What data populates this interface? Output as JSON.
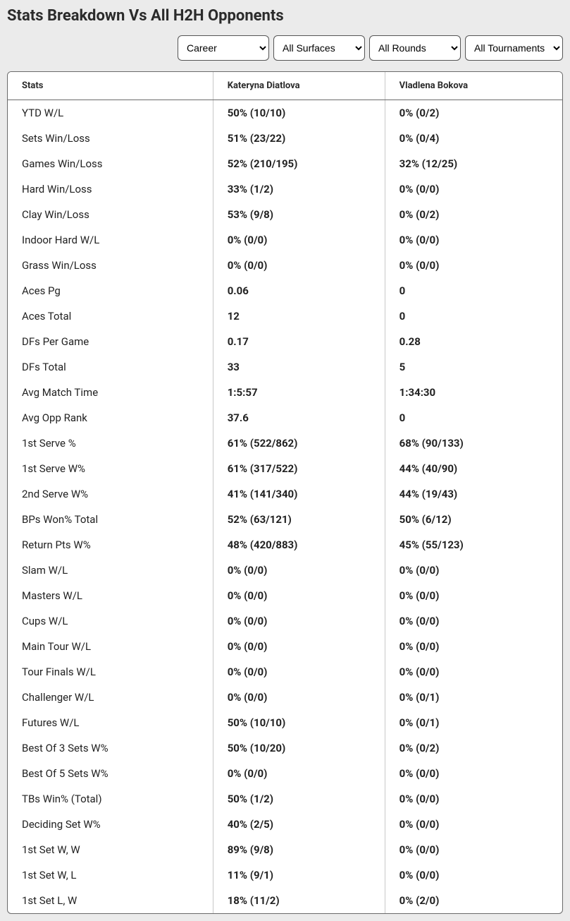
{
  "title": "Stats Breakdown Vs All H2H Opponents",
  "filters": {
    "period": {
      "selected": "Career"
    },
    "surface": {
      "selected": "All Surfaces"
    },
    "round": {
      "selected": "All Rounds"
    },
    "tournament": {
      "selected": "All Tournaments"
    }
  },
  "table": {
    "columns": [
      "Stats",
      "Kateryna Diatlova",
      "Vladlena Bokova"
    ],
    "rows": [
      {
        "label": "YTD W/L",
        "p1": "50% (10/10)",
        "p2": "0% (0/2)"
      },
      {
        "label": "Sets Win/Loss",
        "p1": "51% (23/22)",
        "p2": "0% (0/4)"
      },
      {
        "label": "Games Win/Loss",
        "p1": "52% (210/195)",
        "p2": "32% (12/25)"
      },
      {
        "label": "Hard Win/Loss",
        "p1": "33% (1/2)",
        "p2": "0% (0/0)"
      },
      {
        "label": "Clay Win/Loss",
        "p1": "53% (9/8)",
        "p2": "0% (0/2)"
      },
      {
        "label": "Indoor Hard W/L",
        "p1": "0% (0/0)",
        "p2": "0% (0/0)"
      },
      {
        "label": "Grass Win/Loss",
        "p1": "0% (0/0)",
        "p2": "0% (0/0)"
      },
      {
        "label": "Aces Pg",
        "p1": "0.06",
        "p2": "0"
      },
      {
        "label": "Aces Total",
        "p1": "12",
        "p2": "0"
      },
      {
        "label": "DFs Per Game",
        "p1": "0.17",
        "p2": "0.28"
      },
      {
        "label": "DFs Total",
        "p1": "33",
        "p2": "5"
      },
      {
        "label": "Avg Match Time",
        "p1": "1:5:57",
        "p2": "1:34:30"
      },
      {
        "label": "Avg Opp Rank",
        "p1": "37.6",
        "p2": "0"
      },
      {
        "label": "1st Serve %",
        "p1": "61% (522/862)",
        "p2": "68% (90/133)"
      },
      {
        "label": "1st Serve W%",
        "p1": "61% (317/522)",
        "p2": "44% (40/90)"
      },
      {
        "label": "2nd Serve W%",
        "p1": "41% (141/340)",
        "p2": "44% (19/43)"
      },
      {
        "label": "BPs Won% Total",
        "p1": "52% (63/121)",
        "p2": "50% (6/12)"
      },
      {
        "label": "Return Pts W%",
        "p1": "48% (420/883)",
        "p2": "45% (55/123)"
      },
      {
        "label": "Slam W/L",
        "p1": "0% (0/0)",
        "p2": "0% (0/0)"
      },
      {
        "label": "Masters W/L",
        "p1": "0% (0/0)",
        "p2": "0% (0/0)"
      },
      {
        "label": "Cups W/L",
        "p1": "0% (0/0)",
        "p2": "0% (0/0)"
      },
      {
        "label": "Main Tour W/L",
        "p1": "0% (0/0)",
        "p2": "0% (0/0)"
      },
      {
        "label": "Tour Finals W/L",
        "p1": "0% (0/0)",
        "p2": "0% (0/0)"
      },
      {
        "label": "Challenger W/L",
        "p1": "0% (0/0)",
        "p2": "0% (0/1)"
      },
      {
        "label": "Futures W/L",
        "p1": "50% (10/10)",
        "p2": "0% (0/1)"
      },
      {
        "label": "Best Of 3 Sets W%",
        "p1": "50% (10/20)",
        "p2": "0% (0/2)"
      },
      {
        "label": "Best Of 5 Sets W%",
        "p1": "0% (0/0)",
        "p2": "0% (0/0)"
      },
      {
        "label": "TBs Win% (Total)",
        "p1": "50% (1/2)",
        "p2": "0% (0/0)"
      },
      {
        "label": "Deciding Set W%",
        "p1": "40% (2/5)",
        "p2": "0% (0/0)"
      },
      {
        "label": "1st Set W, W",
        "p1": "89% (9/8)",
        "p2": "0% (0/0)"
      },
      {
        "label": "1st Set W, L",
        "p1": "11% (9/1)",
        "p2": "0% (0/0)"
      },
      {
        "label": "1st Set L, W",
        "p1": "18% (11/2)",
        "p2": "0% (2/0)"
      }
    ]
  }
}
